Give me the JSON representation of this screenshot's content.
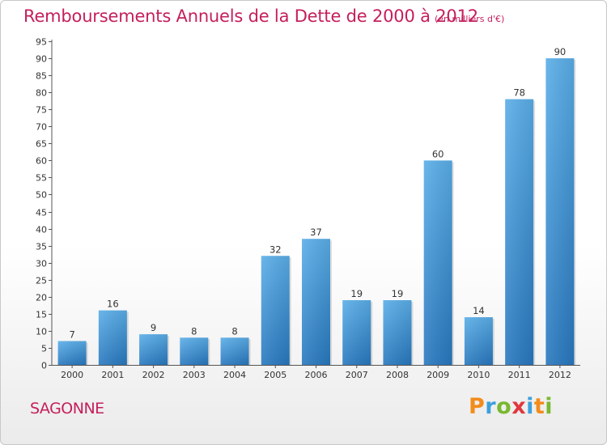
{
  "chart_data": {
    "type": "bar",
    "title": "Remboursements Annuels de la Dette de 2000 à 2012",
    "subtitle": "(en milliers d'€)",
    "categories": [
      "2000",
      "2001",
      "2002",
      "2003",
      "2004",
      "2005",
      "2006",
      "2007",
      "2008",
      "2009",
      "2010",
      "2011",
      "2012"
    ],
    "values": [
      7,
      16,
      9,
      8,
      8,
      32,
      37,
      19,
      19,
      60,
      14,
      78,
      90
    ],
    "ylim": [
      0,
      95
    ],
    "yticks": [
      0,
      5,
      10,
      15,
      20,
      25,
      30,
      35,
      40,
      45,
      50,
      55,
      60,
      65,
      70,
      75,
      80,
      85,
      90,
      95
    ],
    "xlabel": "",
    "ylabel": "",
    "grid": false,
    "bar_color": "#3d8fd6"
  },
  "footer": {
    "commune": "SAGONNE",
    "logo_letters": [
      "P",
      "r",
      "o",
      "x",
      "i",
      "t",
      "i"
    ],
    "logo_colors": [
      "#f28c1c",
      "#3ca0dc",
      "#7ab830",
      "#e0383f",
      "#3ca0dc",
      "#f28c1c",
      "#7ab830"
    ]
  }
}
